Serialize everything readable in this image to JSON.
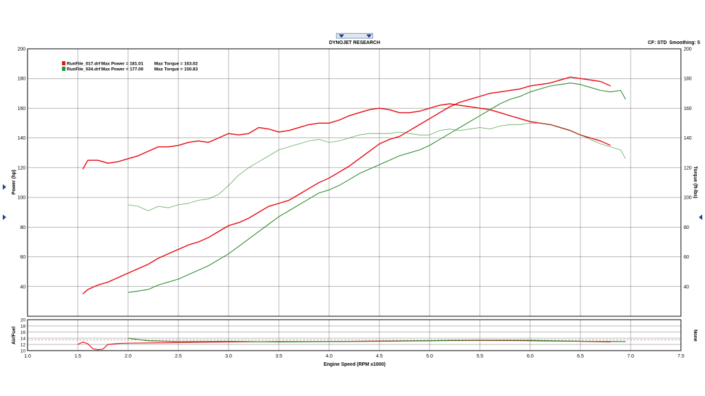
{
  "header": {
    "title": "DYNOJET RESEARCH",
    "cf_text": "CF: STD",
    "smoothing_text": "Smoothing: 5"
  },
  "legend": {
    "entries": [
      {
        "file": "RunFile_017.drf",
        "power_text": "Max Power = 181.01",
        "torque_text": "Max Torque = 163.02",
        "color": "#e8141c"
      },
      {
        "file": "RunFile_034.drf",
        "power_text": "Max Power = 177.00",
        "torque_text": "Max Torque = 150.83",
        "color": "#2e8b2e"
      }
    ]
  },
  "chart_data": [
    {
      "type": "line",
      "title": "DYNOJET RESEARCH",
      "xlabel": "Engine Speed (RPM x1000)",
      "ylabel": "Power (hp)",
      "y2label": "Torque (ft-lbs)",
      "xlim": [
        1.0,
        7.5
      ],
      "ylim": [
        20,
        200
      ],
      "y2lim": [
        20,
        200
      ],
      "x_ticks": [
        "1.0",
        "1.5",
        "2.0",
        "2.5",
        "3.0",
        "3.5",
        "4.0",
        "4.5",
        "5.0",
        "5.5",
        "6.0",
        "6.5",
        "7.0",
        "7.5"
      ],
      "y_ticks": [
        "40",
        "60",
        "80",
        "100",
        "120",
        "140",
        "160",
        "180",
        "200"
      ],
      "grid": true,
      "legend_position": "top-left",
      "series": [
        {
          "name": "RunFile_017.drf",
          "quantity": "power",
          "color": "#e8141c",
          "x": [
            1.55,
            1.6,
            1.7,
            1.8,
            1.9,
            2.0,
            2.1,
            2.2,
            2.3,
            2.4,
            2.5,
            2.6,
            2.7,
            2.8,
            2.9,
            3.0,
            3.1,
            3.2,
            3.3,
            3.4,
            3.5,
            3.6,
            3.7,
            3.8,
            3.9,
            4.0,
            4.1,
            4.2,
            4.3,
            4.4,
            4.5,
            4.6,
            4.7,
            4.8,
            4.9,
            5.0,
            5.1,
            5.2,
            5.3,
            5.4,
            5.5,
            5.6,
            5.7,
            5.8,
            5.9,
            6.0,
            6.1,
            6.2,
            6.3,
            6.4,
            6.5,
            6.6,
            6.7,
            6.8
          ],
          "y": [
            35,
            38,
            41,
            43,
            46,
            49,
            52,
            55,
            59,
            62,
            65,
            68,
            70,
            73,
            77,
            81,
            83,
            86,
            90,
            94,
            96,
            98,
            102,
            106,
            110,
            113,
            117,
            121,
            126,
            131,
            136,
            139,
            141,
            145,
            149,
            153,
            157,
            161,
            164,
            166,
            168,
            170,
            171,
            172,
            173,
            175,
            176,
            177,
            179,
            181,
            180,
            179,
            178,
            175
          ]
        },
        {
          "name": "RunFile_017.drf",
          "quantity": "torque",
          "color": "#e8141c",
          "x": [
            1.55,
            1.6,
            1.7,
            1.8,
            1.9,
            2.0,
            2.1,
            2.2,
            2.3,
            2.4,
            2.5,
            2.6,
            2.7,
            2.8,
            2.9,
            3.0,
            3.1,
            3.2,
            3.3,
            3.4,
            3.5,
            3.6,
            3.7,
            3.8,
            3.9,
            4.0,
            4.1,
            4.2,
            4.3,
            4.4,
            4.5,
            4.6,
            4.7,
            4.8,
            4.9,
            5.0,
            5.1,
            5.2,
            5.3,
            5.4,
            5.5,
            5.6,
            5.7,
            5.8,
            5.9,
            6.0,
            6.1,
            6.2,
            6.3,
            6.4,
            6.5,
            6.6,
            6.7,
            6.8
          ],
          "y": [
            119,
            125,
            125,
            123,
            124,
            126,
            128,
            131,
            134,
            134,
            135,
            137,
            138,
            137,
            140,
            143,
            142,
            143,
            147,
            146,
            144,
            145,
            147,
            149,
            150,
            150,
            152,
            155,
            157,
            159,
            160,
            159,
            157,
            157,
            158,
            160,
            162,
            163,
            162,
            161,
            160,
            159,
            157,
            155,
            153,
            151,
            150,
            149,
            147,
            145,
            142,
            140,
            138,
            135
          ]
        },
        {
          "name": "RunFile_034.drf",
          "quantity": "power",
          "color": "#2e8b2e",
          "x": [
            2.0,
            2.1,
            2.2,
            2.3,
            2.4,
            2.5,
            2.6,
            2.7,
            2.8,
            2.9,
            3.0,
            3.1,
            3.2,
            3.3,
            3.4,
            3.5,
            3.6,
            3.7,
            3.8,
            3.9,
            4.0,
            4.1,
            4.2,
            4.3,
            4.4,
            4.5,
            4.6,
            4.7,
            4.8,
            4.9,
            5.0,
            5.1,
            5.2,
            5.3,
            5.4,
            5.5,
            5.6,
            5.7,
            5.8,
            5.9,
            6.0,
            6.1,
            6.2,
            6.3,
            6.4,
            6.5,
            6.6,
            6.7,
            6.8,
            6.9,
            6.95
          ],
          "y": [
            36,
            37,
            38,
            41,
            43,
            45,
            48,
            51,
            54,
            58,
            62,
            67,
            72,
            77,
            82,
            87,
            91,
            95,
            99,
            103,
            105,
            108,
            112,
            116,
            119,
            122,
            125,
            128,
            130,
            132,
            135,
            139,
            143,
            147,
            151,
            155,
            159,
            163,
            166,
            168,
            171,
            173,
            175,
            176,
            177,
            176,
            174,
            172,
            171,
            172,
            166
          ]
        },
        {
          "name": "RunFile_034.drf",
          "quantity": "torque",
          "color": "#2e8b2e",
          "x": [
            2.0,
            2.1,
            2.2,
            2.3,
            2.4,
            2.5,
            2.6,
            2.7,
            2.8,
            2.9,
            3.0,
            3.1,
            3.2,
            3.3,
            3.4,
            3.5,
            3.6,
            3.7,
            3.8,
            3.9,
            4.0,
            4.1,
            4.2,
            4.3,
            4.4,
            4.5,
            4.6,
            4.7,
            4.8,
            4.9,
            5.0,
            5.1,
            5.2,
            5.3,
            5.4,
            5.5,
            5.6,
            5.7,
            5.8,
            5.9,
            6.0,
            6.1,
            6.2,
            6.3,
            6.4,
            6.5,
            6.6,
            6.7,
            6.8,
            6.9,
            6.95
          ],
          "y": [
            95,
            94,
            91,
            94,
            93,
            95,
            96,
            98,
            99,
            102,
            108,
            115,
            120,
            124,
            128,
            132,
            134,
            136,
            138,
            139,
            137,
            138,
            140,
            142,
            143,
            143,
            143,
            144,
            143,
            142,
            142,
            145,
            146,
            145,
            146,
            147,
            146,
            148,
            149,
            149,
            150,
            150,
            149,
            147,
            145,
            142,
            139,
            136,
            134,
            132,
            126
          ]
        }
      ]
    },
    {
      "type": "line",
      "ylabel": "Air/Fuel",
      "y2label": "None",
      "xlim": [
        1.0,
        7.5
      ],
      "ylim": [
        10,
        20
      ],
      "y_ticks": [
        "10",
        "12",
        "14",
        "16",
        "18",
        "20"
      ],
      "reference_line": 13.5,
      "grid": true,
      "series": [
        {
          "name": "RunFile_017.drf",
          "color": "#e8141c",
          "x": [
            1.5,
            1.55,
            1.6,
            1.65,
            1.7,
            1.75,
            1.8,
            1.9,
            2.0,
            2.5,
            3.0,
            3.5,
            4.0,
            4.5,
            5.0,
            5.5,
            6.0,
            6.5,
            6.8
          ],
          "y": [
            12.0,
            12.8,
            12.2,
            10.6,
            10.3,
            10.5,
            12.0,
            12.3,
            12.4,
            12.6,
            12.8,
            12.9,
            12.9,
            13.1,
            13.2,
            13.3,
            13.2,
            13.0,
            12.8
          ]
        },
        {
          "name": "RunFile_034.drf",
          "color": "#2e8b2e",
          "x": [
            2.0,
            2.1,
            2.2,
            2.5,
            3.0,
            3.5,
            4.0,
            4.5,
            5.0,
            5.5,
            6.0,
            6.5,
            6.95
          ],
          "y": [
            14.0,
            13.6,
            13.2,
            12.9,
            13.0,
            12.8,
            12.9,
            13.0,
            13.2,
            13.4,
            13.3,
            13.0,
            12.9
          ]
        }
      ]
    }
  ]
}
